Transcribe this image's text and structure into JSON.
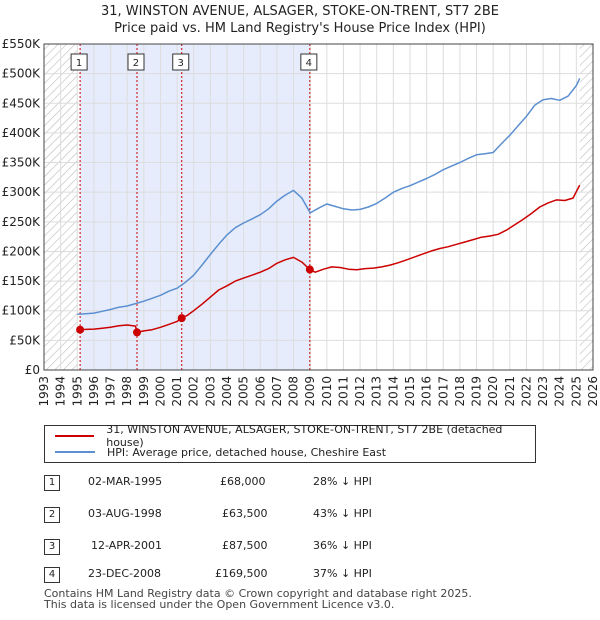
{
  "titles": {
    "line1": "31, WINSTON AVENUE, ALSAGER, STOKE-ON-TRENT, ST7 2BE",
    "line2": "Price paid vs. HM Land Registry's House Price Index (HPI)"
  },
  "legend": {
    "red_label": "31, WINSTON AVENUE, ALSAGER, STOKE-ON-TRENT, ST7 2BE (detached house)",
    "blue_label": "HPI: Average price, detached house, Cheshire East"
  },
  "transactions": [
    {
      "id": "1",
      "date": "02-MAR-1995",
      "price": "£68,000",
      "hpi": "28% ↓ HPI"
    },
    {
      "id": "2",
      "date": "03-AUG-1998",
      "price": "£63,500",
      "hpi": "43% ↓ HPI"
    },
    {
      "id": "3",
      "date": "12-APR-2001",
      "price": "£87,500",
      "hpi": "36% ↓ HPI"
    },
    {
      "id": "4",
      "date": "23-DEC-2008",
      "price": "£169,500",
      "hpi": "37% ↓ HPI"
    }
  ],
  "footer": {
    "line1": "Contains HM Land Registry data © Crown copyright and database right 2025.",
    "line2": "This data is licensed under the Open Government Licence v3.0."
  },
  "colors": {
    "red": "#cc0000",
    "blue": "#5b8fd0",
    "shade": "#e6ecfb",
    "grid": "#dddddd"
  },
  "chart_data": {
    "type": "line",
    "title": "31, WINSTON AVENUE, ALSAGER, STOKE-ON-TRENT, ST7 2BE",
    "subtitle": "Price paid vs. HM Land Registry's House Price Index (HPI)",
    "xlim": [
      1993,
      2026
    ],
    "ylim": [
      0,
      550000
    ],
    "x_ticks": [
      1993,
      1994,
      1995,
      1996,
      1997,
      1998,
      1999,
      2000,
      2001,
      2002,
      2003,
      2004,
      2005,
      2006,
      2007,
      2008,
      2009,
      2010,
      2011,
      2012,
      2013,
      2014,
      2015,
      2016,
      2017,
      2018,
      2019,
      2020,
      2021,
      2022,
      2023,
      2024,
      2025,
      2026
    ],
    "y_ticks": [
      {
        "value": 0,
        "label": "£0"
      },
      {
        "value": 50000,
        "label": "£50K"
      },
      {
        "value": 100000,
        "label": "£100K"
      },
      {
        "value": 150000,
        "label": "£150K"
      },
      {
        "value": 200000,
        "label": "£200K"
      },
      {
        "value": 250000,
        "label": "£250K"
      },
      {
        "value": 300000,
        "label": "£300K"
      },
      {
        "value": 350000,
        "label": "£350K"
      },
      {
        "value": 400000,
        "label": "£400K"
      },
      {
        "value": 450000,
        "label": "£450K"
      },
      {
        "value": 500000,
        "label": "£500K"
      },
      {
        "value": 550000,
        "label": "£550K"
      }
    ],
    "shaded_range": [
      1995.17,
      2008.98
    ],
    "hatched_before": 1995.0,
    "hatched_after": 2025.2,
    "series": [
      {
        "name": "31, WINSTON AVENUE, ALSAGER, STOKE-ON-TRENT, ST7 2BE (detached house)",
        "color": "#cc0000",
        "x": [
          1995.17,
          1995.5,
          1996,
          1996.5,
          1997,
          1997.5,
          1998,
          1998.5,
          1998.59,
          1999,
          1999.5,
          2000,
          2000.5,
          2001,
          2001.28,
          2001.6,
          2002,
          2002.5,
          2003,
          2003.5,
          2004,
          2004.5,
          2005,
          2005.5,
          2006,
          2006.5,
          2007,
          2007.5,
          2008,
          2008.5,
          2008.98,
          2009.3,
          2009.8,
          2010.3,
          2010.8,
          2011.3,
          2011.8,
          2012.3,
          2012.8,
          2013.3,
          2013.8,
          2014.3,
          2014.8,
          2015.3,
          2015.8,
          2016.3,
          2016.8,
          2017.3,
          2017.8,
          2018.3,
          2018.8,
          2019.3,
          2019.8,
          2020.3,
          2020.8,
          2021.3,
          2021.8,
          2022.3,
          2022.8,
          2023.3,
          2023.8,
          2024.3,
          2024.8,
          2025.2
        ],
        "y": [
          68000,
          68500,
          69000,
          70500,
          72000,
          74500,
          76000,
          74000,
          63500,
          66000,
          68000,
          72000,
          77000,
          82000,
          87500,
          92000,
          100000,
          111000,
          123000,
          135000,
          142000,
          150000,
          155000,
          160000,
          165000,
          171000,
          180000,
          186000,
          190000,
          182000,
          169500,
          165000,
          170000,
          174000,
          173000,
          170000,
          169000,
          171000,
          172000,
          174000,
          177000,
          181000,
          186000,
          191000,
          196000,
          201000,
          205000,
          208000,
          212000,
          216000,
          220000,
          224000,
          226000,
          229000,
          236000,
          245000,
          254000,
          264000,
          275000,
          282000,
          287000,
          286000,
          290000,
          312000
        ]
      },
      {
        "name": "HPI: Average price, detached house, Cheshire East",
        "color": "#5b8fd0",
        "x": [
          1995,
          1995.5,
          1996,
          1996.5,
          1997,
          1997.5,
          1998,
          1998.5,
          1999,
          1999.5,
          2000,
          2000.5,
          2001,
          2001.5,
          2002,
          2002.5,
          2003,
          2003.5,
          2004,
          2004.5,
          2005,
          2005.5,
          2006,
          2006.5,
          2007,
          2007.5,
          2008,
          2008.5,
          2009,
          2009.5,
          2010,
          2010.5,
          2011,
          2011.5,
          2012,
          2012.5,
          2013,
          2013.5,
          2014,
          2014.5,
          2015,
          2015.5,
          2016,
          2016.5,
          2017,
          2017.5,
          2018,
          2018.5,
          2019,
          2019.5,
          2020,
          2020.5,
          2021,
          2021.5,
          2022,
          2022.5,
          2023,
          2023.5,
          2024,
          2024.5,
          2025,
          2025.2
        ],
        "y": [
          94000,
          95000,
          96000,
          99000,
          102000,
          106000,
          108000,
          112000,
          116000,
          121000,
          126000,
          133000,
          138000,
          148000,
          160000,
          177000,
          195000,
          212000,
          228000,
          240000,
          248000,
          255000,
          262000,
          272000,
          285000,
          295000,
          303000,
          290000,
          265000,
          273000,
          280000,
          276000,
          272000,
          270000,
          271000,
          275000,
          281000,
          290000,
          300000,
          306000,
          311000,
          317000,
          323000,
          330000,
          338000,
          344000,
          350000,
          357000,
          363000,
          365000,
          367000,
          382000,
          396000,
          412000,
          428000,
          447000,
          456000,
          458000,
          455000,
          462000,
          480000,
          492000
        ]
      }
    ],
    "markers": [
      {
        "label": "1",
        "x": 1995.17,
        "y": 68000
      },
      {
        "label": "2",
        "x": 1998.59,
        "y": 63500
      },
      {
        "label": "3",
        "x": 2001.28,
        "y": 87500
      },
      {
        "label": "4",
        "x": 2008.98,
        "y": 169500
      }
    ]
  }
}
